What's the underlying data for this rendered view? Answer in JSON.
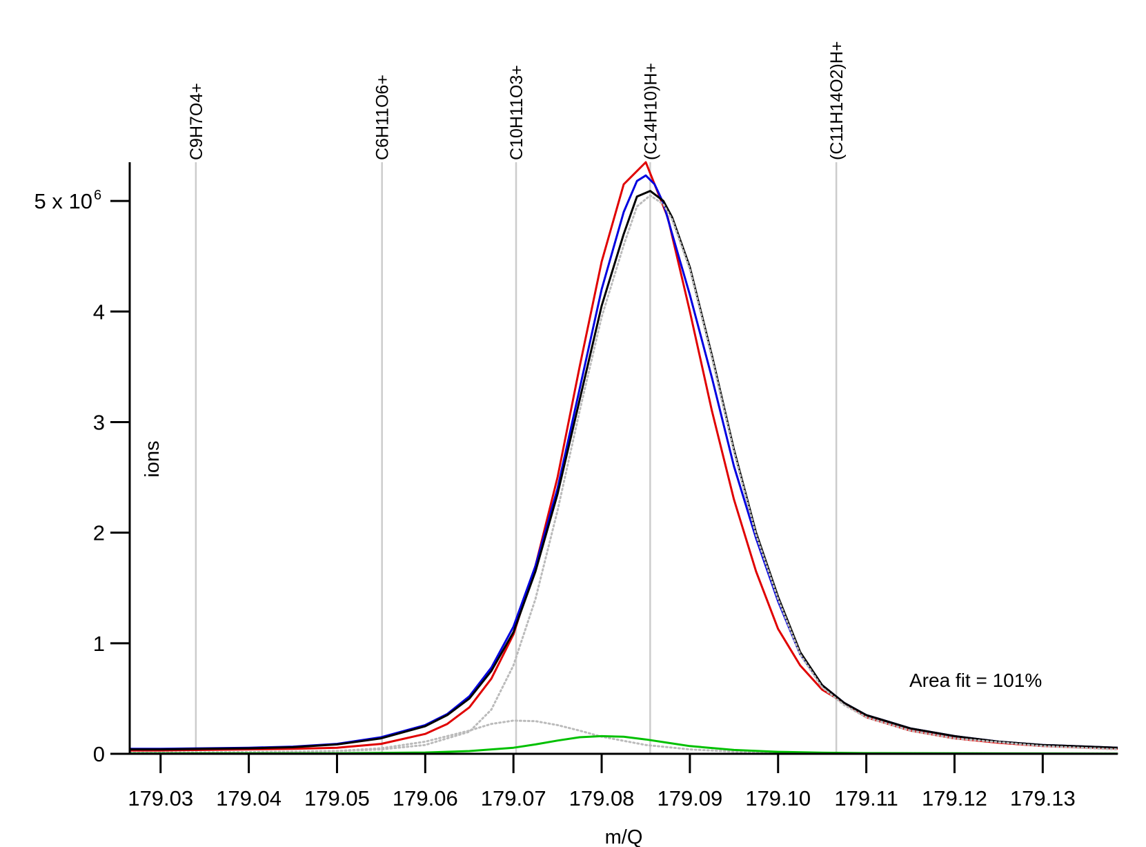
{
  "chart_data": {
    "type": "line",
    "title": "",
    "xlabel": "m/Q",
    "ylabel": "ions",
    "xlim": [
      179.0265,
      179.1385
    ],
    "ylim": [
      0,
      5350000
    ],
    "x_ticks": [
      179.03,
      179.04,
      179.05,
      179.06,
      179.07,
      179.08,
      179.09,
      179.1,
      179.11,
      179.12,
      179.13
    ],
    "x_tick_labels": [
      "179.03",
      "179.04",
      "179.05",
      "179.06",
      "179.07",
      "179.08",
      "179.09",
      "179.10",
      "179.11",
      "179.12",
      "179.13"
    ],
    "y_ticks": [
      0,
      1000000,
      2000000,
      3000000,
      4000000,
      5000000
    ],
    "y_tick_labels": [
      "0",
      "1",
      "2",
      "3",
      "4",
      "5 x 10"
    ],
    "y_multiplier_exponent": "6",
    "grid": false,
    "peak_markers": [
      {
        "label": "C9H7O4+",
        "x": 179.034
      },
      {
        "label": "C6H11O6+",
        "x": 179.0551
      },
      {
        "label": "C10H11O3+",
        "x": 179.0703
      },
      {
        "label": "(C14H10)H+",
        "x": 179.0855
      },
      {
        "label": "(C11H14O2)H+",
        "x": 179.1066
      }
    ],
    "annotation": "Area fit = 101%",
    "series": [
      {
        "color": "#e00000",
        "style": "solid",
        "x": [
          179.0265,
          179.03,
          179.035,
          179.04,
          179.045,
          179.05,
          179.055,
          179.06,
          179.0625,
          179.065,
          179.0675,
          179.07,
          179.0725,
          179.075,
          179.0775,
          179.08,
          179.0825,
          179.085,
          179.0875,
          179.09,
          179.0925,
          179.095,
          179.0975,
          179.1,
          179.1025,
          179.105,
          179.1075,
          179.11,
          179.115,
          179.12,
          179.125,
          179.13,
          179.1385
        ],
        "y": [
          30000,
          30000,
          35000,
          40000,
          45000,
          55000,
          90000,
          180000,
          270000,
          420000,
          680000,
          1080000,
          1700000,
          2500000,
          3500000,
          4450000,
          5150000,
          5350000,
          4850000,
          4000000,
          3100000,
          2300000,
          1650000,
          1130000,
          800000,
          580000,
          460000,
          330000,
          210000,
          140000,
          100000,
          70000,
          45000
        ]
      },
      {
        "color": "#0000e0",
        "style": "solid",
        "x": [
          179.0265,
          179.03,
          179.035,
          179.04,
          179.045,
          179.05,
          179.055,
          179.06,
          179.0625,
          179.065,
          179.0675,
          179.07,
          179.0725,
          179.075,
          179.0775,
          179.08,
          179.0825,
          179.084,
          179.085,
          179.086,
          179.087,
          179.088,
          179.09,
          179.0925,
          179.095,
          179.0975,
          179.1,
          179.1025,
          179.105,
          179.1075,
          179.11,
          179.115,
          179.12,
          179.125,
          179.13,
          179.1385
        ],
        "y": [
          45000,
          45000,
          50000,
          55000,
          65000,
          90000,
          150000,
          260000,
          360000,
          520000,
          780000,
          1150000,
          1700000,
          2400000,
          3300000,
          4200000,
          4900000,
          5180000,
          5230000,
          5150000,
          4980000,
          4700000,
          4150000,
          3400000,
          2600000,
          1950000,
          1380000,
          900000,
          620000,
          460000,
          350000,
          230000,
          160000,
          110000,
          80000,
          55000
        ]
      },
      {
        "color": "#000000",
        "style": "solid",
        "x": [
          179.0265,
          179.03,
          179.035,
          179.04,
          179.045,
          179.05,
          179.055,
          179.06,
          179.0625,
          179.065,
          179.0675,
          179.07,
          179.0725,
          179.075,
          179.0775,
          179.08,
          179.0825,
          179.084,
          179.0855,
          179.087,
          179.088,
          179.09,
          179.0925,
          179.095,
          179.0975,
          179.1,
          179.1025,
          179.105,
          179.1075,
          179.11,
          179.115,
          179.12,
          179.125,
          179.13,
          179.1385
        ],
        "y": [
          40000,
          40000,
          45000,
          50000,
          60000,
          85000,
          140000,
          250000,
          350000,
          500000,
          750000,
          1100000,
          1650000,
          2350000,
          3200000,
          4050000,
          4700000,
          5040000,
          5090000,
          5000000,
          4850000,
          4400000,
          3600000,
          2750000,
          2000000,
          1420000,
          920000,
          620000,
          460000,
          350000,
          230000,
          160000,
          110000,
          80000,
          55000
        ]
      },
      {
        "color": "#bbbbbb",
        "style": "dotted",
        "x": [
          179.0265,
          179.04,
          179.05,
          179.055,
          179.06,
          179.065,
          179.0675,
          179.07,
          179.0725,
          179.075,
          179.0775,
          179.08,
          179.0825,
          179.084,
          179.0855,
          179.087,
          179.088,
          179.09,
          179.0925,
          179.095,
          179.0975,
          179.1,
          179.1025,
          179.105,
          179.1075,
          179.11,
          179.115,
          179.12,
          179.13,
          179.1385
        ],
        "y": [
          10000,
          15000,
          25000,
          40000,
          80000,
          200000,
          400000,
          800000,
          1400000,
          2200000,
          3100000,
          3950000,
          4600000,
          4950000,
          5050000,
          4970000,
          4830000,
          4380000,
          3580000,
          2730000,
          1980000,
          1400000,
          900000,
          600000,
          440000,
          330000,
          210000,
          140000,
          70000,
          40000
        ]
      },
      {
        "color": "#bbbbbb",
        "style": "dotted",
        "x": [
          179.0265,
          179.04,
          179.05,
          179.055,
          179.06,
          179.065,
          179.0675,
          179.07,
          179.0725,
          179.075,
          179.0775,
          179.08,
          179.085,
          179.09,
          179.095,
          179.1,
          179.11,
          179.1385
        ],
        "y": [
          5000,
          10000,
          25000,
          50000,
          110000,
          210000,
          270000,
          300000,
          295000,
          260000,
          210000,
          155000,
          80000,
          40000,
          20000,
          10000,
          5000,
          2000
        ]
      },
      {
        "color": "#00c000",
        "style": "solid",
        "x": [
          179.0265,
          179.05,
          179.06,
          179.065,
          179.07,
          179.0725,
          179.075,
          179.0775,
          179.08,
          179.0825,
          179.085,
          179.0875,
          179.09,
          179.095,
          179.1,
          179.105,
          179.11,
          179.1385
        ],
        "y": [
          3000,
          5000,
          12000,
          25000,
          55000,
          85000,
          120000,
          150000,
          160000,
          155000,
          130000,
          100000,
          70000,
          35000,
          18000,
          10000,
          6000,
          2000
        ]
      },
      {
        "color": "#00c000",
        "style": "solid",
        "x": [
          179.0265,
          179.1385
        ],
        "y": [
          0,
          0
        ]
      }
    ]
  }
}
